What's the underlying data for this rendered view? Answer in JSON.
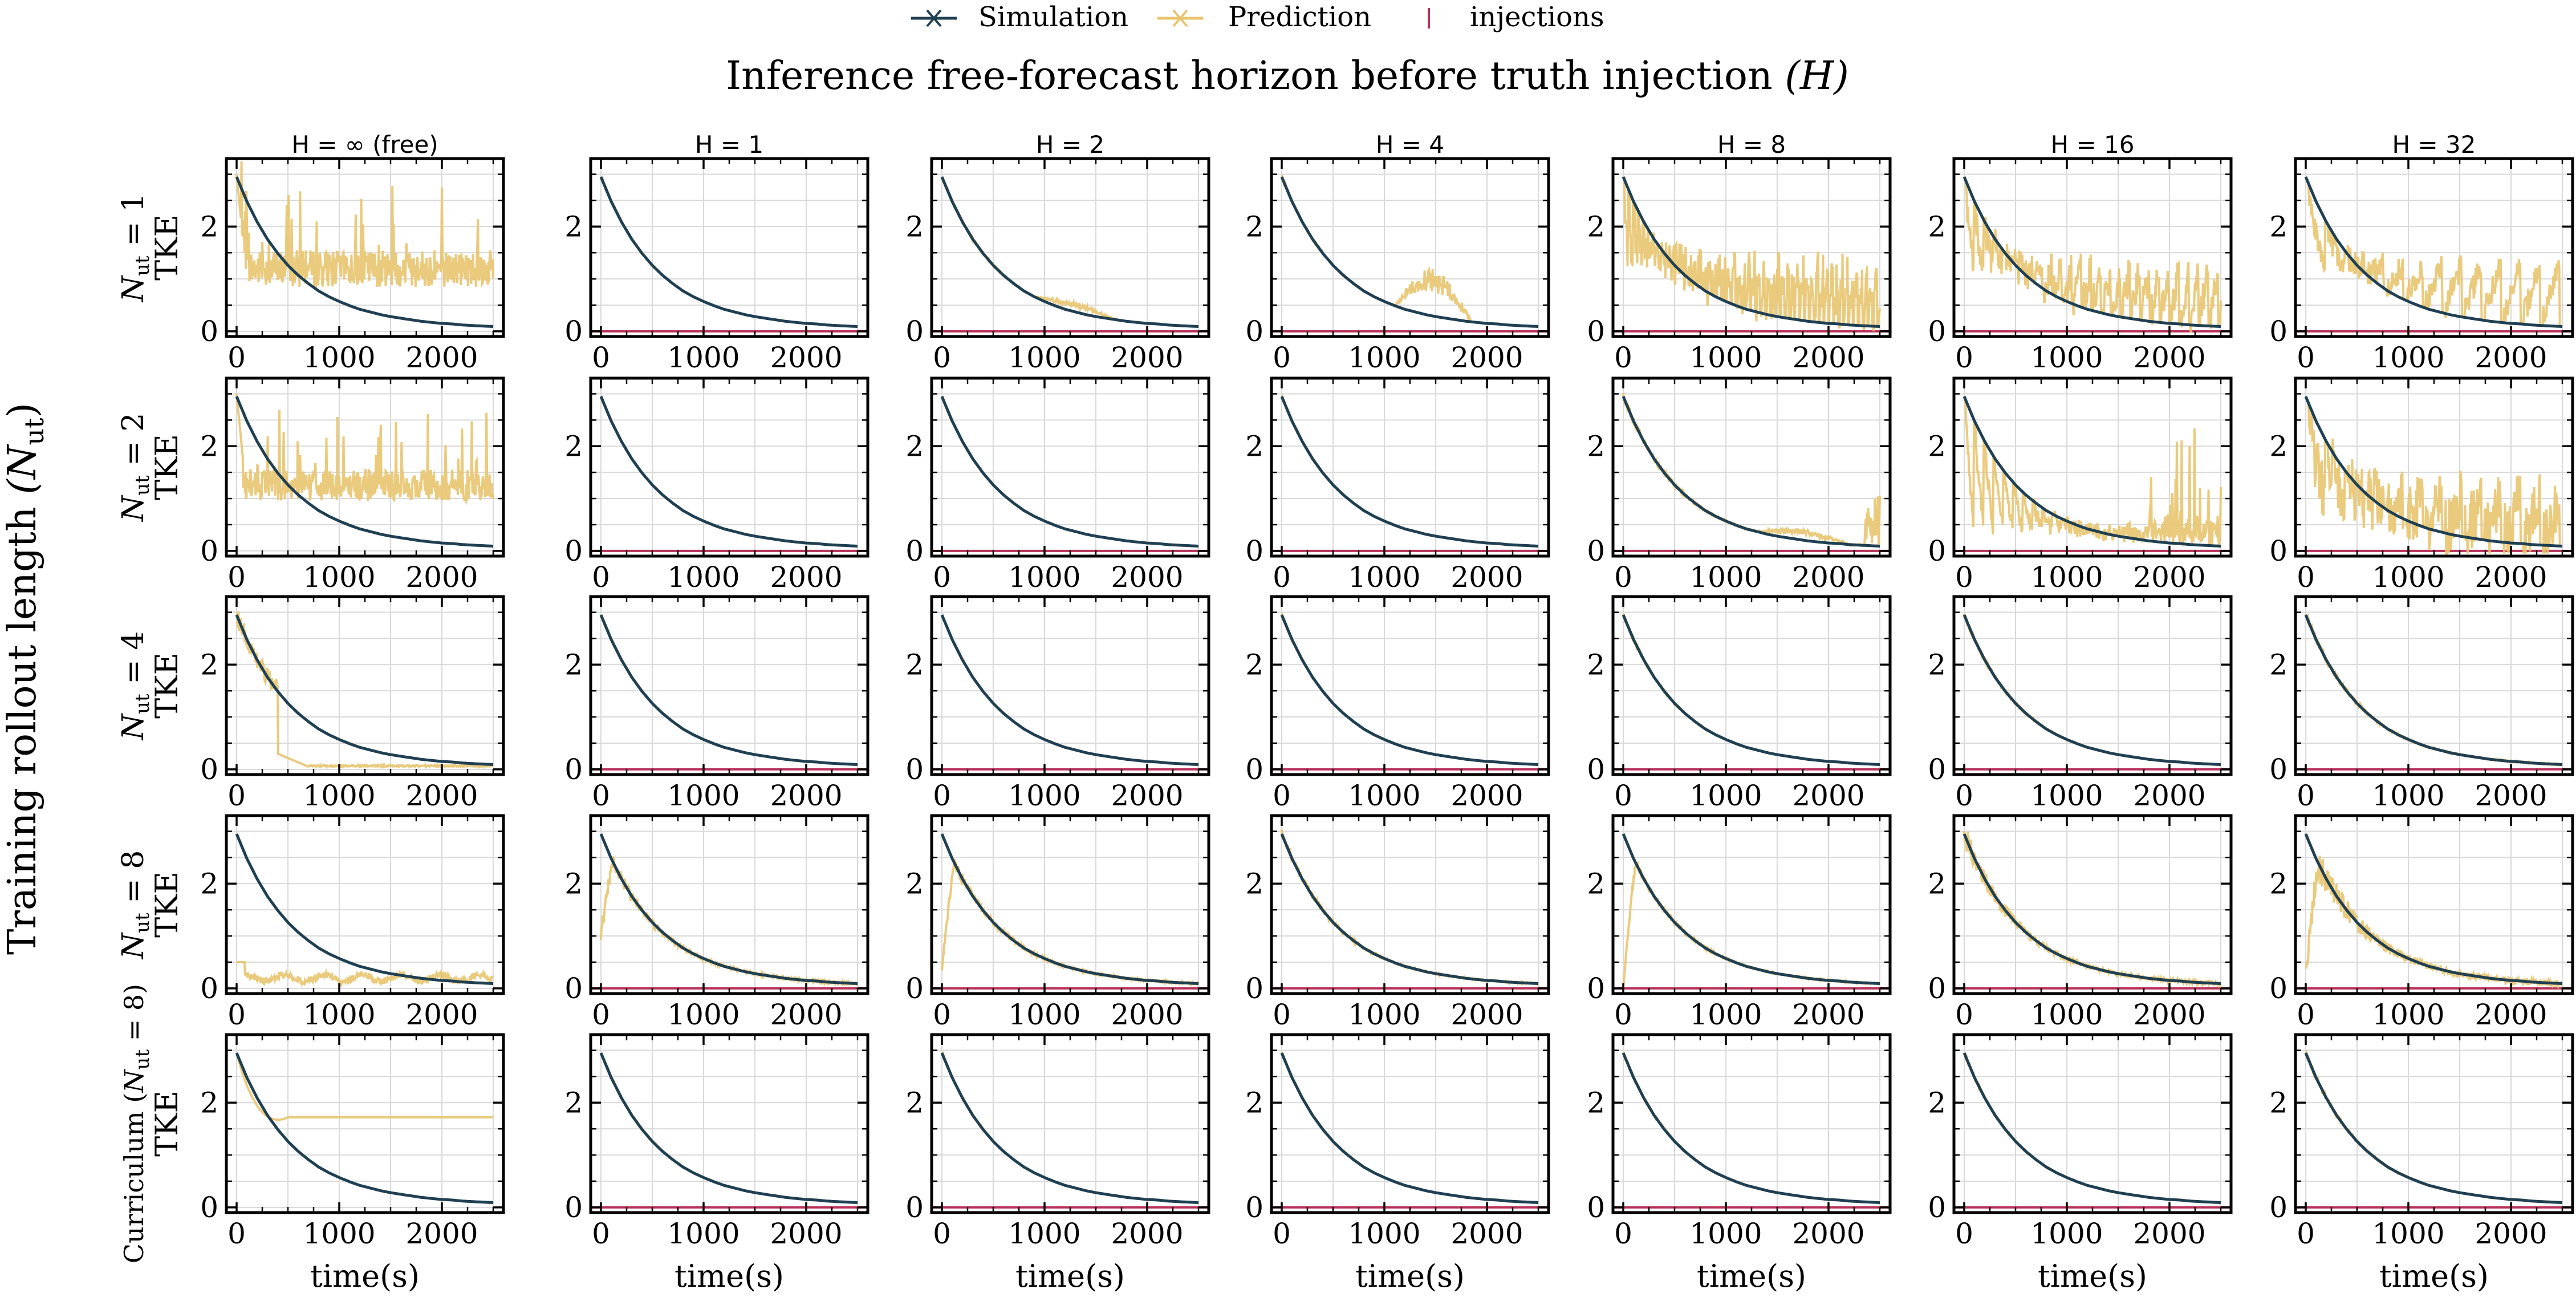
{
  "legend": [
    {
      "label": "Simulation",
      "color": "#1f3f52",
      "marker": "x"
    },
    {
      "label": "Prediction",
      "color": "#e8c46e",
      "marker": "x"
    },
    {
      "label": "injections",
      "color": "#b8325a",
      "marker": "|"
    }
  ],
  "suptitle": "Inference free-forecast horizon before truth injection",
  "suptitle_symbol": "(H)",
  "row_axis_label": "Training rollout length",
  "row_axis_symbol": "(N",
  "row_axis_subscript": "ut",
  "row_axis_close": ")",
  "chart_data": {
    "type": "line",
    "layout": "grid 5 rows x 7 columns",
    "columns": [
      {
        "label": "H = ∞ (free)",
        "H": null,
        "injections": false
      },
      {
        "label": "H = 1",
        "H": 1,
        "injections": true
      },
      {
        "label": "H = 2",
        "H": 2,
        "injections": true
      },
      {
        "label": "H = 4",
        "H": 4,
        "injections": true
      },
      {
        "label": "H = 8",
        "H": 8,
        "injections": true
      },
      {
        "label": "H = 16",
        "H": 16,
        "injections": true
      },
      {
        "label": "H = 32",
        "H": 32,
        "injections": true
      }
    ],
    "rows": [
      {
        "label": "N_ut = 1",
        "prefix": "",
        "sym": "N",
        "sub": "ut",
        "eq": " = 1",
        "suffix": ""
      },
      {
        "label": "N_ut = 2",
        "prefix": "",
        "sym": "N",
        "sub": "ut",
        "eq": " = 2",
        "suffix": ""
      },
      {
        "label": "N_ut = 4",
        "prefix": "",
        "sym": "N",
        "sub": "ut",
        "eq": " = 4",
        "suffix": ""
      },
      {
        "label": "N_ut = 8",
        "prefix": "",
        "sym": "N",
        "sub": "ut",
        "eq": " = 8",
        "suffix": ""
      },
      {
        "label": "Curriculum (N_ut = 8)",
        "prefix": "Curriculum (",
        "sym": "N",
        "sub": "ut",
        "eq": " = 8",
        "suffix": ")"
      }
    ],
    "ylabel": "TKE",
    "xlabel": "time(s)",
    "xlim": [
      -100,
      2600
    ],
    "ylim": [
      -0.1,
      3.3
    ],
    "xticks": [
      0,
      1000,
      2000
    ],
    "yticks": [
      0,
      2
    ],
    "simulation": {
      "name": "Simulation",
      "color": "#1f3f52",
      "x": [
        0,
        100,
        200,
        300,
        400,
        500,
        600,
        700,
        800,
        900,
        1000,
        1100,
        1200,
        1300,
        1400,
        1500,
        1600,
        1700,
        1800,
        1900,
        2000,
        2100,
        2200,
        2300,
        2400,
        2500
      ],
      "y": [
        2.95,
        2.48,
        2.09,
        1.76,
        1.49,
        1.26,
        1.07,
        0.91,
        0.77,
        0.66,
        0.57,
        0.49,
        0.42,
        0.37,
        0.32,
        0.28,
        0.25,
        0.22,
        0.19,
        0.17,
        0.15,
        0.14,
        0.12,
        0.11,
        0.1,
        0.09
      ]
    },
    "prediction_profiles": {
      "r0c0": {
        "kind": "noise",
        "level": 1.2,
        "spread": 0.35,
        "spikes": 0.25
      },
      "r0c1": {
        "kind": "track",
        "spread": 0.04
      },
      "r0c2": {
        "kind": "track",
        "spread": 0.06,
        "bump": [
          900,
          1700,
          0.18
        ]
      },
      "r0c3": {
        "kind": "track",
        "spread": 0.06,
        "bump": [
          1100,
          1850,
          0.9
        ]
      },
      "r0c4": {
        "kind": "sawtooth",
        "period": 8,
        "level": 1.3,
        "spread": 0.9
      },
      "r0c5": {
        "kind": "sawtooth",
        "period": 16,
        "level": 1.2,
        "spread": 0.7
      },
      "r0c6": {
        "kind": "sawtooth",
        "period": 32,
        "level": 1.3,
        "spread": 0.5
      },
      "r1c0": {
        "kind": "noise",
        "level": 1.25,
        "spread": 0.3,
        "spikes": 0.2
      },
      "r1c1": {
        "kind": "track",
        "spread": 0.03
      },
      "r1c2": {
        "kind": "track",
        "spread": 0.03
      },
      "r1c3": {
        "kind": "track",
        "spread": 0.04
      },
      "r1c4": {
        "kind": "track",
        "spread": 0.12,
        "bump": [
          1300,
          2200,
          0.2
        ],
        "tail": [
          2350,
          1.0
        ]
      },
      "r1c5": {
        "kind": "sawtooth",
        "period": 16,
        "level": 0.4,
        "spread": 0.35,
        "tail": [
          1800,
          2.0
        ]
      },
      "r1c6": {
        "kind": "sawtooth",
        "period": 32,
        "level": 1.0,
        "spread": 1.2
      },
      "r2c0": {
        "kind": "collapse",
        "to": 0.05,
        "at": 400
      },
      "r2c1": {
        "kind": "track",
        "spread": 0.04
      },
      "r2c2": {
        "kind": "track",
        "spread": 0.03
      },
      "r2c3": {
        "kind": "track",
        "spread": 0.04
      },
      "r2c4": {
        "kind": "track",
        "spread": 0.06
      },
      "r2c5": {
        "kind": "track",
        "spread": 0.08
      },
      "r2c6": {
        "kind": "track",
        "spread": 0.12
      },
      "r3c0": {
        "kind": "flat",
        "level": 0.2,
        "wobble": 0.12
      },
      "r3c1": {
        "kind": "track",
        "spread": 0.25,
        "start": 1.0
      },
      "r3c2": {
        "kind": "track",
        "spread": 0.2,
        "start": 0.3
      },
      "r3c3": {
        "kind": "track",
        "spread": 0.15
      },
      "r3c4": {
        "kind": "track",
        "spread": 0.15,
        "start": 0.0
      },
      "r3c5": {
        "kind": "track",
        "spread": 0.35
      },
      "r3c6": {
        "kind": "track",
        "spread": 0.6,
        "start": 0.3
      },
      "r4c0": {
        "kind": "plateau",
        "level": 1.72
      },
      "r4c1": {
        "kind": "track",
        "spread": 0.05
      },
      "r4c2": {
        "kind": "track",
        "spread": 0.04
      },
      "r4c3": {
        "kind": "track",
        "spread": 0.04
      },
      "r4c4": {
        "kind": "track",
        "spread": 0.05
      },
      "r4c5": {
        "kind": "track",
        "spread": 0.06
      },
      "r4c6": {
        "kind": "track",
        "spread": 0.08
      }
    }
  }
}
